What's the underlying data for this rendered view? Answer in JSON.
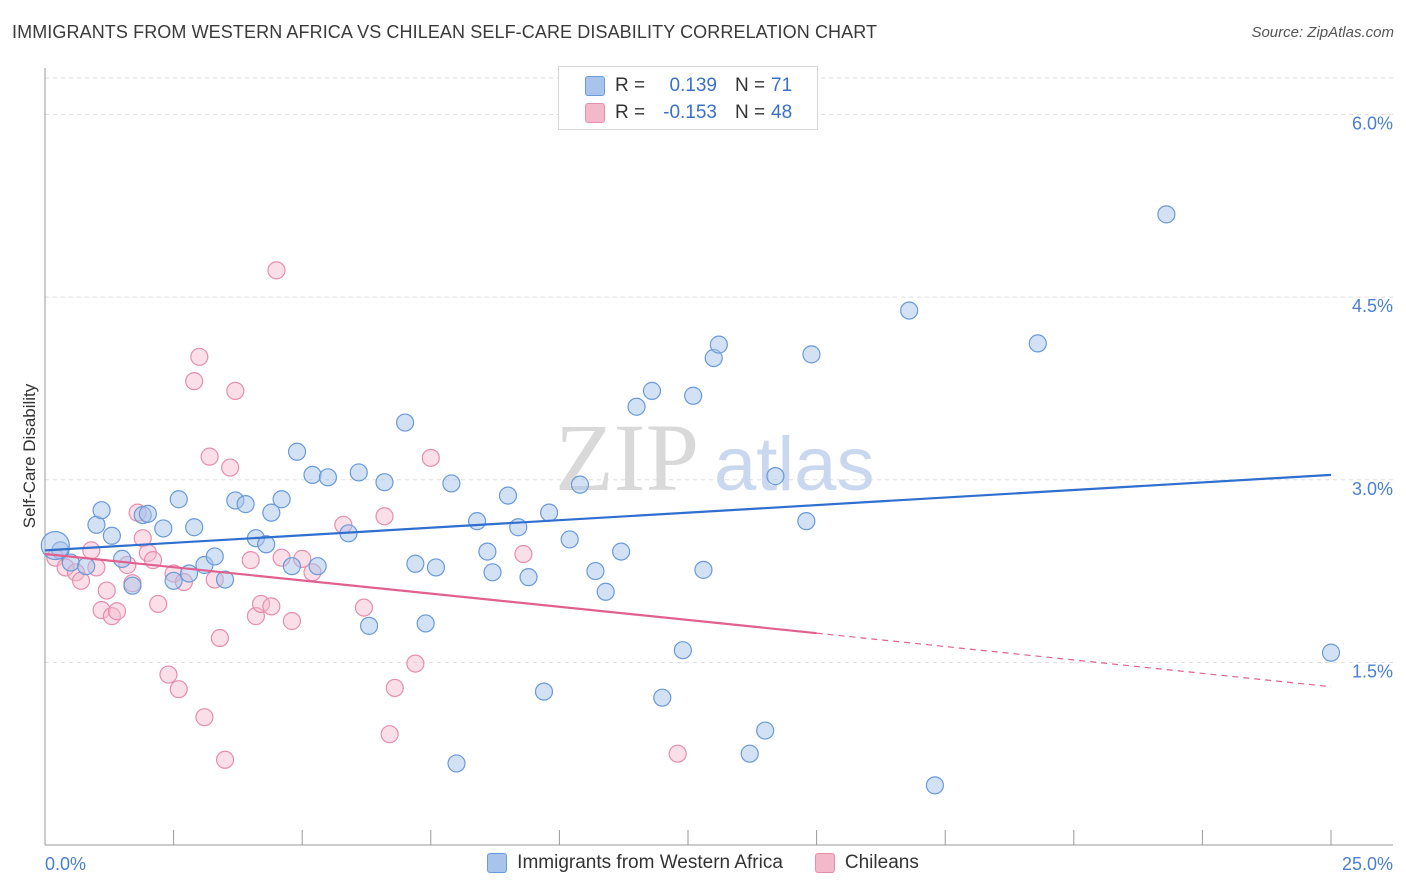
{
  "header": {
    "title": "IMMIGRANTS FROM WESTERN AFRICA VS CHILEAN SELF-CARE DISABILITY CORRELATION CHART",
    "source": "Source: ZipAtlas.com"
  },
  "legend": {
    "series1": {
      "r_label": "R =",
      "r_value": "0.139",
      "n_label": "N =",
      "n_value": "71"
    },
    "series2": {
      "r_label": "R =",
      "r_value": "-0.153",
      "n_label": "N =",
      "n_value": "48"
    }
  },
  "watermark": {
    "zip": "ZIP",
    "atlas": "atlas"
  },
  "colors": {
    "blue_fill": "#a8c4ec",
    "blue_stroke": "#6a9ad8",
    "blue_line": "#2f6fcf",
    "pink_fill": "#f4b8cb",
    "pink_stroke": "#e58fab",
    "pink_line": "#e0608e",
    "grid": "#dddddd",
    "axis": "#999999"
  },
  "chart_data": {
    "type": "scatter",
    "title": "IMMIGRANTS FROM WESTERN AFRICA VS CHILEAN SELF-CARE DISABILITY CORRELATION CHART",
    "xlabel": "",
    "ylabel": "Self-Care Disability",
    "xlim": [
      0,
      25
    ],
    "ylim": [
      0,
      6.3
    ],
    "x_tick_labels": [
      "0.0%",
      "25.0%"
    ],
    "y_ticks": [
      1.5,
      3.0,
      4.5,
      6.0
    ],
    "y_tick_labels": [
      "1.5%",
      "3.0%",
      "4.5%",
      "6.0%"
    ],
    "grid": true,
    "legend_position": "bottom",
    "series": [
      {
        "name": "Immigrants from Western Africa",
        "R": 0.139,
        "N": 71,
        "trend": {
          "x": [
            0,
            25
          ],
          "y": [
            2.42,
            3.04
          ]
        },
        "points": [
          [
            0.3,
            2.42
          ],
          [
            0.5,
            2.32
          ],
          [
            0.8,
            2.29
          ],
          [
            1.0,
            2.63
          ],
          [
            1.1,
            2.75
          ],
          [
            1.3,
            2.54
          ],
          [
            1.5,
            2.35
          ],
          [
            1.7,
            2.13
          ],
          [
            1.9,
            2.71
          ],
          [
            2.0,
            2.72
          ],
          [
            2.3,
            2.6
          ],
          [
            2.5,
            2.17
          ],
          [
            2.6,
            2.84
          ],
          [
            2.8,
            2.23
          ],
          [
            2.9,
            2.61
          ],
          [
            3.1,
            2.3
          ],
          [
            3.3,
            2.37
          ],
          [
            3.5,
            2.18
          ],
          [
            3.7,
            2.83
          ],
          [
            3.9,
            2.8
          ],
          [
            4.1,
            2.52
          ],
          [
            4.3,
            2.47
          ],
          [
            4.4,
            2.73
          ],
          [
            4.6,
            2.84
          ],
          [
            4.8,
            2.29
          ],
          [
            4.9,
            3.23
          ],
          [
            5.2,
            3.04
          ],
          [
            5.3,
            2.29
          ],
          [
            5.5,
            3.02
          ],
          [
            5.9,
            2.56
          ],
          [
            6.1,
            3.06
          ],
          [
            6.3,
            1.8
          ],
          [
            6.6,
            2.98
          ],
          [
            7.0,
            3.47
          ],
          [
            7.2,
            2.31
          ],
          [
            7.4,
            1.82
          ],
          [
            7.6,
            2.28
          ],
          [
            7.9,
            2.97
          ],
          [
            8.0,
            0.67
          ],
          [
            8.4,
            2.66
          ],
          [
            8.6,
            2.41
          ],
          [
            8.7,
            2.24
          ],
          [
            9.0,
            2.87
          ],
          [
            9.2,
            2.61
          ],
          [
            9.4,
            2.2
          ],
          [
            9.7,
            1.26
          ],
          [
            9.8,
            2.73
          ],
          [
            10.2,
            2.51
          ],
          [
            10.4,
            2.96
          ],
          [
            10.7,
            2.25
          ],
          [
            10.9,
            2.08
          ],
          [
            11.2,
            2.41
          ],
          [
            11.5,
            3.6
          ],
          [
            11.8,
            3.73
          ],
          [
            12.0,
            1.21
          ],
          [
            12.4,
            1.6
          ],
          [
            12.6,
            3.69
          ],
          [
            12.8,
            2.26
          ],
          [
            13.0,
            4.0
          ],
          [
            13.1,
            4.11
          ],
          [
            13.7,
            0.75
          ],
          [
            14.0,
            0.94
          ],
          [
            14.2,
            3.03
          ],
          [
            14.8,
            2.66
          ],
          [
            14.9,
            4.03
          ],
          [
            16.8,
            4.39
          ],
          [
            17.3,
            0.49
          ],
          [
            19.3,
            4.12
          ],
          [
            21.8,
            5.18
          ],
          [
            25.0,
            1.58
          ],
          [
            0.2,
            2.46
          ]
        ]
      },
      {
        "name": "Chileans",
        "R": -0.153,
        "N": 48,
        "trend": {
          "x": [
            0,
            15
          ],
          "y": [
            2.39,
            1.74
          ]
        },
        "trend_dashed": {
          "x": [
            15,
            25
          ],
          "y": [
            1.74,
            1.3
          ]
        },
        "points": [
          [
            0.2,
            2.36
          ],
          [
            0.4,
            2.28
          ],
          [
            0.6,
            2.24
          ],
          [
            0.7,
            2.17
          ],
          [
            0.9,
            2.42
          ],
          [
            1.0,
            2.28
          ],
          [
            1.1,
            1.93
          ],
          [
            1.2,
            2.09
          ],
          [
            1.3,
            1.88
          ],
          [
            1.4,
            1.92
          ],
          [
            1.6,
            2.3
          ],
          [
            1.7,
            2.15
          ],
          [
            1.8,
            2.73
          ],
          [
            1.9,
            2.52
          ],
          [
            2.0,
            2.4
          ],
          [
            2.1,
            2.34
          ],
          [
            2.2,
            1.98
          ],
          [
            2.4,
            1.4
          ],
          [
            2.5,
            2.23
          ],
          [
            2.6,
            1.28
          ],
          [
            2.7,
            2.16
          ],
          [
            2.9,
            3.81
          ],
          [
            3.0,
            4.01
          ],
          [
            3.1,
            1.05
          ],
          [
            3.2,
            3.19
          ],
          [
            3.3,
            2.18
          ],
          [
            3.4,
            1.7
          ],
          [
            3.5,
            0.7
          ],
          [
            3.6,
            3.1
          ],
          [
            3.7,
            3.73
          ],
          [
            4.0,
            2.34
          ],
          [
            4.1,
            1.88
          ],
          [
            4.2,
            1.98
          ],
          [
            4.4,
            1.96
          ],
          [
            4.5,
            4.72
          ],
          [
            4.6,
            2.36
          ],
          [
            4.8,
            1.84
          ],
          [
            5.0,
            2.35
          ],
          [
            5.2,
            2.24
          ],
          [
            5.8,
            2.63
          ],
          [
            6.2,
            1.95
          ],
          [
            6.6,
            2.7
          ],
          [
            6.7,
            0.91
          ],
          [
            6.8,
            1.29
          ],
          [
            7.2,
            1.49
          ],
          [
            7.5,
            3.18
          ],
          [
            9.3,
            2.39
          ],
          [
            12.3,
            0.75
          ]
        ]
      }
    ]
  },
  "bottom_legend": {
    "item1": "Immigrants from Western Africa",
    "item2": "Chileans"
  }
}
